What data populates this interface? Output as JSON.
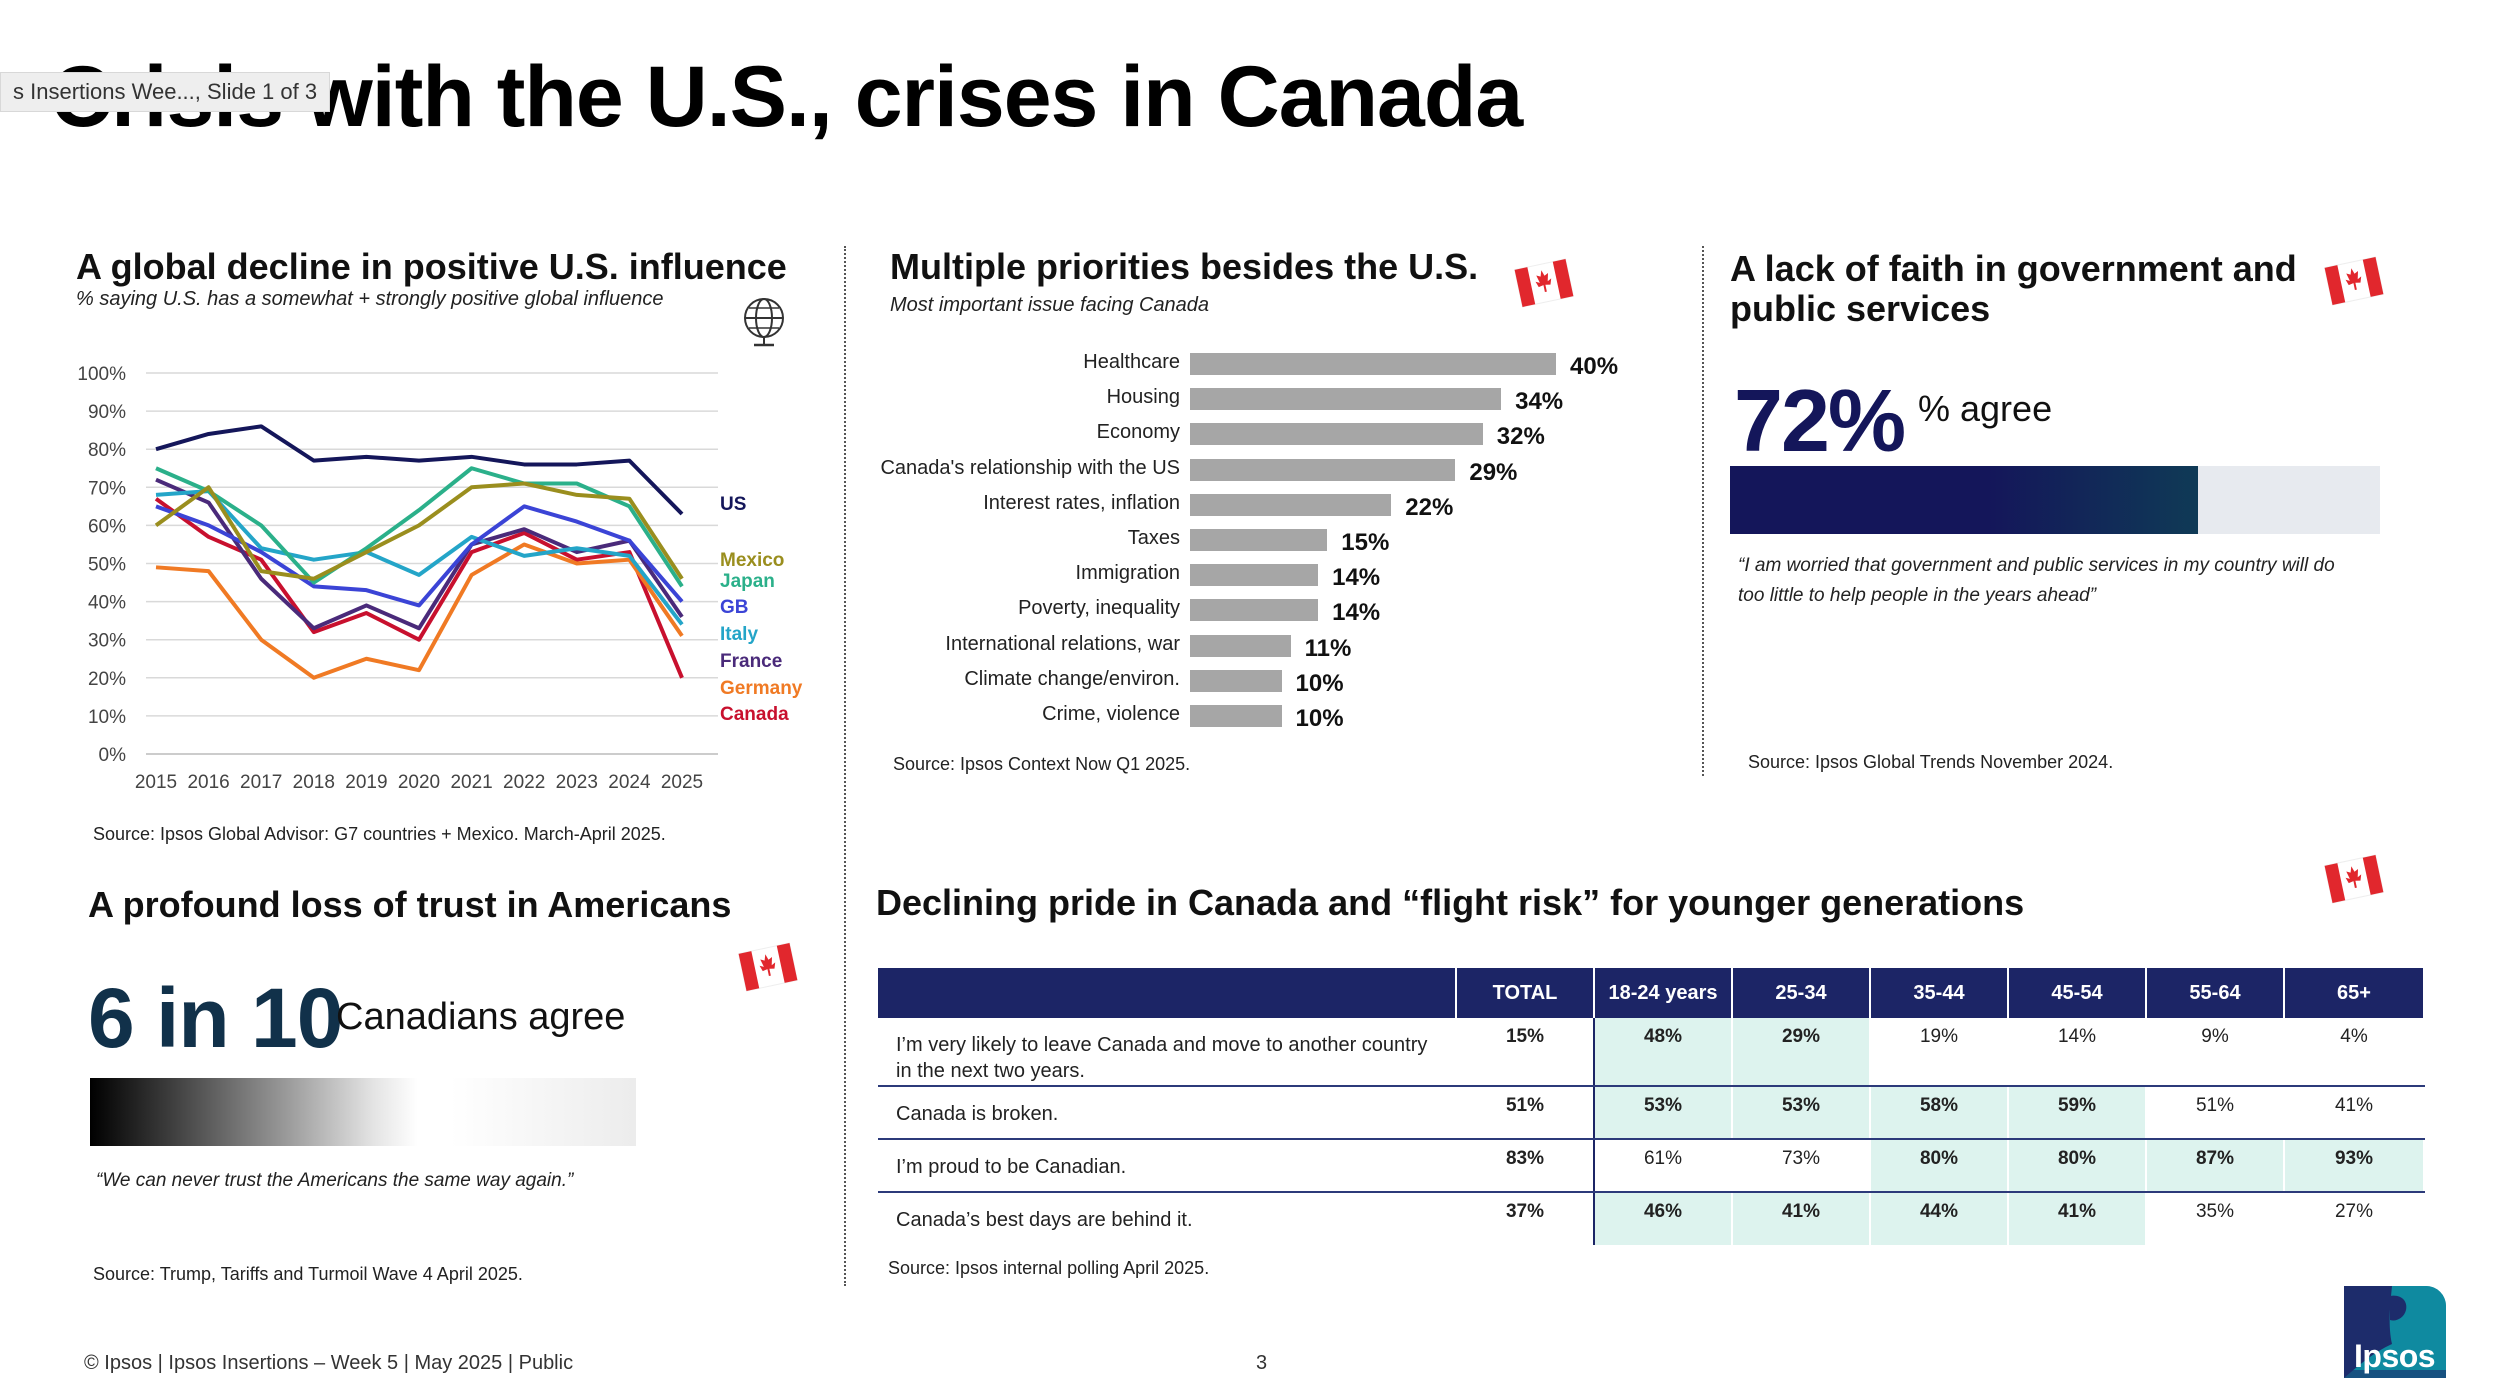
{
  "tooltip": "s Insertions Wee..., Slide 1 of 3",
  "title": "Crisis with the U.S., crises in Canada",
  "panel1": {
    "title": "A global decline in positive U.S. influence",
    "subtitle": "% saying U.S. has a somewhat + strongly positive global influence",
    "source": "Source:  Ipsos Global Advisor:  G7 countries + Mexico. March-April 2025."
  },
  "panel2": {
    "title": "Multiple priorities besides the U.S.",
    "subtitle": "Most important issue facing Canada",
    "source": "Source: Ipsos Context Now Q1 2025."
  },
  "panel3": {
    "title_line1": "A lack of faith in government and",
    "title_line2": "public services",
    "big_number": "72%",
    "big_label": "% agree",
    "fill_fraction": 0.72,
    "quote_line1": "“I am worried that government and public services in my country will do",
    "quote_line2": "too little to help people in the years ahead”",
    "source": "Source:  Ipsos Global Trends November 2024."
  },
  "panel4": {
    "title": "A profound loss of trust in Americans",
    "big_number": "6 in 10",
    "big_label": "Canadians agree",
    "fill_fraction": 0.6,
    "quote": "“We can never trust the Americans the same way again.”",
    "source": "Source:  Trump, Tariffs and Turmoil Wave 4 April 2025."
  },
  "panel5": {
    "title": "Declining pride in Canada and “flight risk” for younger generations",
    "source": "Source: Ipsos internal polling April 2025.",
    "columns": [
      "TOTAL",
      "18-24 years",
      "25-34",
      "35-44",
      "45-54",
      "55-64",
      "65+"
    ],
    "rows": [
      {
        "statement": "I’m very likely to leave Canada and move to another country in the next two years.",
        "values": [
          "15%",
          "48%",
          "29%",
          "19%",
          "14%",
          "9%",
          "4%"
        ],
        "highlight": [
          false,
          true,
          true,
          false,
          false,
          false,
          false
        ]
      },
      {
        "statement": "Canada is broken.",
        "values": [
          "51%",
          "53%",
          "53%",
          "58%",
          "59%",
          "51%",
          "41%"
        ],
        "highlight": [
          false,
          true,
          true,
          true,
          true,
          false,
          false
        ]
      },
      {
        "statement": "I’m proud to be Canadian.",
        "values": [
          "83%",
          "61%",
          "73%",
          "80%",
          "80%",
          "87%",
          "93%"
        ],
        "highlight": [
          false,
          false,
          false,
          true,
          true,
          true,
          true
        ]
      },
      {
        "statement": "Canada’s best days are behind it.",
        "values": [
          "37%",
          "46%",
          "41%",
          "44%",
          "41%",
          "35%",
          "27%"
        ],
        "highlight": [
          false,
          true,
          true,
          true,
          true,
          false,
          false
        ]
      }
    ]
  },
  "footer": {
    "left": "© Ipsos | Ipsos Insertions – Week 5 | May 2025 | Public",
    "page": "3",
    "logo_text": "Ipsos"
  },
  "chart_data": [
    {
      "type": "line",
      "title": "A global decline in positive U.S. influence",
      "subtitle": "% saying U.S. has a somewhat + strongly positive global influence",
      "x": [
        2015,
        2016,
        2017,
        2018,
        2019,
        2020,
        2021,
        2022,
        2023,
        2024,
        2025
      ],
      "ylim": [
        0,
        100
      ],
      "yticks": [
        "0%",
        "10%",
        "20%",
        "30%",
        "40%",
        "50%",
        "60%",
        "70%",
        "80%",
        "90%",
        "100%"
      ],
      "grid": true,
      "legend": "right",
      "series": [
        {
          "name": "US",
          "color": "#14165a",
          "values": [
            80,
            84,
            86,
            77,
            78,
            77,
            78,
            76,
            76,
            77,
            63
          ]
        },
        {
          "name": "Mexico",
          "color": "#9a8e1e",
          "values": [
            60,
            70,
            48,
            46,
            53,
            60,
            70,
            71,
            68,
            67,
            46
          ]
        },
        {
          "name": "Japan",
          "color": "#2bb08a",
          "values": [
            75,
            69,
            60,
            45,
            54,
            64,
            75,
            71,
            71,
            65,
            44
          ]
        },
        {
          "name": "GB",
          "color": "#3b44d6",
          "values": [
            65,
            60,
            53,
            44,
            43,
            39,
            55,
            65,
            61,
            56,
            40
          ]
        },
        {
          "name": "Italy",
          "color": "#24a5c8",
          "values": [
            68,
            69,
            54,
            51,
            53,
            47,
            57,
            52,
            54,
            52,
            34
          ]
        },
        {
          "name": "France",
          "color": "#4a2a7a",
          "values": [
            72,
            66,
            46,
            33,
            39,
            33,
            55,
            59,
            53,
            56,
            36
          ]
        },
        {
          "name": "Germany",
          "color": "#f07a24",
          "values": [
            49,
            48,
            30,
            20,
            25,
            22,
            47,
            55,
            50,
            51,
            31
          ]
        },
        {
          "name": "Canada",
          "color": "#c8102e",
          "values": [
            67,
            57,
            51,
            32,
            37,
            30,
            53,
            58,
            51,
            53,
            20
          ]
        }
      ]
    },
    {
      "type": "bar",
      "orientation": "horizontal",
      "title": "Multiple priorities besides the U.S.",
      "subtitle": "Most important issue facing Canada",
      "categories": [
        "Healthcare",
        "Housing",
        "Economy",
        "Canada's relationship with the US",
        "Interest rates, inflation",
        "Taxes",
        "Immigration",
        "Poverty, inequality",
        "International relations, war",
        "Climate change/environ.",
        "Crime, violence"
      ],
      "values": [
        40,
        34,
        32,
        29,
        22,
        15,
        14,
        14,
        11,
        10,
        10
      ],
      "labels": [
        "40%",
        "34%",
        "32%",
        "29%",
        "22%",
        "15%",
        "14%",
        "14%",
        "11%",
        "10%",
        "10%"
      ],
      "color": "#a6a6a6"
    }
  ]
}
